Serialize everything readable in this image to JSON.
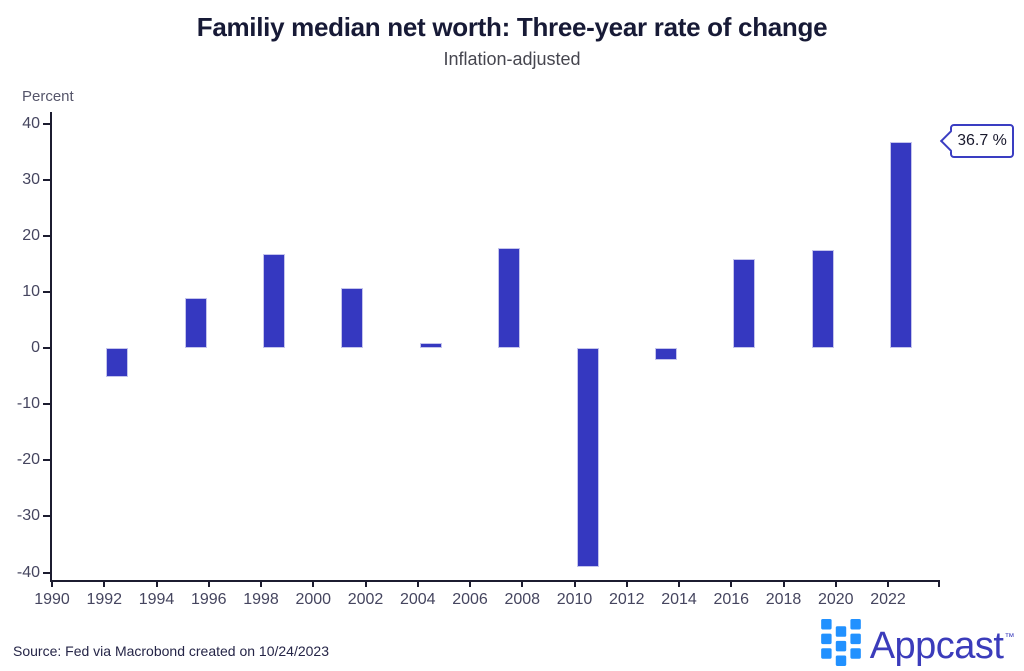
{
  "title": "Familiy median net worth: Three-year rate of change",
  "subtitle": "Inflation-adjusted",
  "unit_label": "Percent",
  "callout_label": "36.7 %",
  "footer": {
    "source": "Source: Fed via Macrobond created on 10/24/2023",
    "brand": "Appcast",
    "trademark": "™"
  },
  "colors": {
    "bar": "#3538c0",
    "bar_edge": "#c4c4ec",
    "axis": "#1c1c30",
    "tick_label": "#45455f",
    "title": "#171a36",
    "subtitle": "#46464f",
    "callout_border": "#3a3dc2",
    "logo_text": "#3b3cbb",
    "logo_squares": "#2191ff"
  },
  "chart_data": {
    "type": "bar",
    "title": "Familiy median net worth: Three-year rate of change",
    "subtitle": "Inflation-adjusted",
    "xlabel": "",
    "ylabel": "Percent",
    "categories": [
      1992,
      1995,
      1998,
      2001,
      2004,
      2007,
      2010,
      2013,
      2016,
      2019,
      2022
    ],
    "values": [
      -5.1,
      8.9,
      16.8,
      10.7,
      0.9,
      17.9,
      -39.1,
      -2.1,
      15.8,
      17.4,
      36.7
    ],
    "x_ticks": [
      1990,
      1992,
      1994,
      1996,
      1998,
      2000,
      2002,
      2004,
      2006,
      2008,
      2010,
      2012,
      2014,
      2016,
      2018,
      2020,
      2022
    ],
    "y_ticks": [
      40,
      30,
      20,
      10,
      0,
      -10,
      -20,
      -30,
      -40
    ],
    "xlim": [
      1990,
      2024
    ],
    "ylim": [
      -40,
      40
    ],
    "grid": false,
    "legend": null,
    "annotation": {
      "x": 2022,
      "y": 36.7,
      "label": "36.7 %"
    }
  }
}
